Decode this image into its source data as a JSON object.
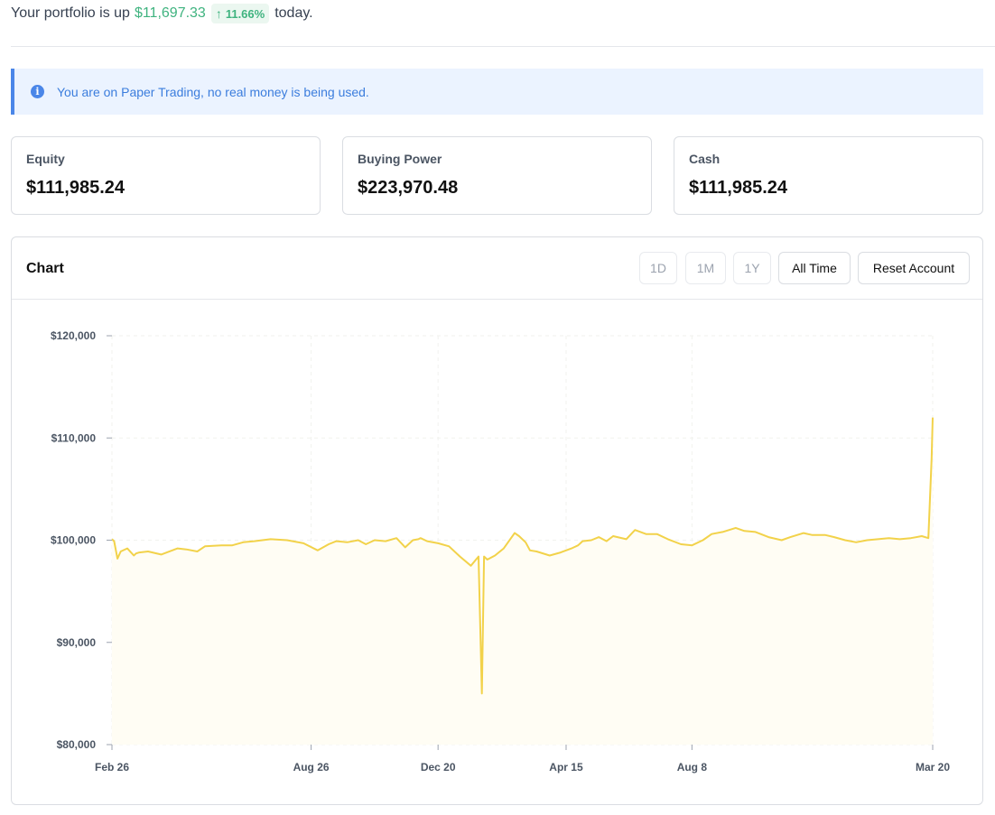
{
  "summary": {
    "prefix": "Your portfolio is up",
    "gain": "$11,697.33",
    "gain_pct": "11.66%",
    "suffix": "today."
  },
  "alert": {
    "text": "You are on Paper Trading, no real money is being used."
  },
  "stats": [
    {
      "label": "Equity",
      "value": "$111,985.24"
    },
    {
      "label": "Buying Power",
      "value": "$223,970.48"
    },
    {
      "label": "Cash",
      "value": "$111,985.24"
    }
  ],
  "chart_panel": {
    "title": "Chart",
    "range_buttons": [
      "1D",
      "1M",
      "1Y",
      "All Time"
    ],
    "reset_label": "Reset Account"
  },
  "colors": {
    "gain": "#3fb37f",
    "info": "#4a86e8",
    "line": "#f2d24a",
    "fill": "#fffdf4"
  },
  "chart_data": {
    "type": "area",
    "title": "",
    "xlabel": "",
    "ylabel": "",
    "ylim": [
      80000,
      120000
    ],
    "yticks": [
      120000,
      110000,
      100000,
      90000,
      80000
    ],
    "ytick_labels": [
      "$120,000",
      "$110,000",
      "$100,000",
      "$90,000",
      "$80,000"
    ],
    "xtick_labels": [
      "Feb 26",
      "Aug 26",
      "Dec 20",
      "Apr 15",
      "Aug 8",
      "Mar 20"
    ],
    "xtick_days": [
      0,
      182,
      298,
      415,
      530,
      750
    ],
    "grid": true,
    "legend": "none",
    "series": [
      {
        "x": [
          0,
          2,
          5,
          8,
          14,
          20,
          22,
          25,
          33,
          45,
          60,
          68,
          78,
          85,
          100,
          110,
          120,
          130,
          145,
          160,
          175,
          188,
          198,
          205,
          215,
          225,
          232,
          240,
          250,
          260,
          268,
          275,
          280,
          282,
          288,
          298,
          308,
          318,
          328,
          335,
          338,
          340,
          343,
          350,
          358,
          368,
          372,
          378,
          382,
          388,
          400,
          410,
          420,
          426,
          430,
          438,
          445,
          452,
          458,
          470,
          478,
          488,
          498,
          508,
          520,
          530,
          540,
          548,
          558,
          570,
          578,
          588,
          600,
          612,
          620,
          632,
          640,
          652,
          660,
          670,
          680,
          690,
          700,
          710,
          720,
          730,
          740,
          746,
          749,
          750
        ],
        "y": [
          100100,
          99900,
          98200,
          98900,
          99200,
          98500,
          98700,
          98800,
          98900,
          98600,
          99200,
          99100,
          98900,
          99400,
          99500,
          99500,
          99800,
          99900,
          100100,
          100000,
          99700,
          99000,
          99600,
          99900,
          99800,
          100000,
          99600,
          100000,
          99900,
          100200,
          99300,
          100000,
          100100,
          100200,
          99900,
          99700,
          99400,
          98400,
          97500,
          98400,
          85000,
          98400,
          98100,
          98500,
          99200,
          100700,
          100400,
          99800,
          99000,
          98900,
          98500,
          98800,
          99200,
          99500,
          99900,
          100000,
          100300,
          99900,
          100400,
          100100,
          101000,
          100600,
          100600,
          100100,
          99600,
          99500,
          100000,
          100600,
          100800,
          101200,
          100900,
          100800,
          100300,
          100000,
          100300,
          100700,
          100500,
          100500,
          100300,
          100000,
          99800,
          100000,
          100100,
          100200,
          100100,
          100200,
          100400,
          100200,
          108000,
          112000
        ]
      }
    ]
  }
}
